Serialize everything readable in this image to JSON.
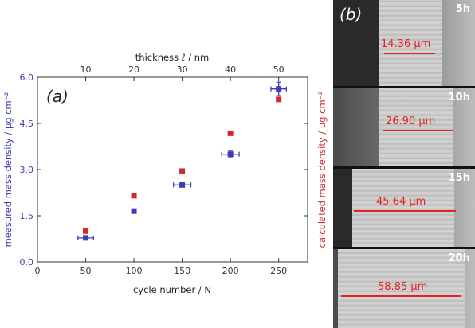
{
  "chart_data": {
    "type": "scatter",
    "panel_label": "(a)",
    "xlabel": "cycle number / N",
    "x2label": "thickness ℓ / nm",
    "ylabel": "measured mass density  /  μg cm⁻²",
    "y2label": "calculated mass density  /  μg cm⁻²",
    "xlim": [
      0,
      280
    ],
    "ylim": [
      0.0,
      6.0
    ],
    "x_ticks": [
      "0",
      "50",
      "100",
      "150",
      "200",
      "250"
    ],
    "x_tick_values": [
      0,
      50,
      100,
      150,
      200,
      250
    ],
    "x2_ticks": [
      "10",
      "20",
      "30",
      "40",
      "50"
    ],
    "x2_tick_values": [
      50,
      100,
      150,
      200,
      250
    ],
    "y_ticks": [
      "0.0",
      "1.5",
      "3.0",
      "4.5",
      "6.0"
    ],
    "y_tick_values": [
      0.0,
      1.5,
      3.0,
      4.5,
      6.0
    ],
    "grid": false,
    "series": [
      {
        "color": "#3b3bb8",
        "marker": "square",
        "axis": "left",
        "points": [
          {
            "x": 50,
            "y": 0.78,
            "xerr": 8,
            "yerr": 0
          },
          {
            "x": 100,
            "y": 1.65,
            "xerr": 0,
            "yerr": 0
          },
          {
            "x": 150,
            "y": 2.5,
            "xerr": 9,
            "yerr": 0
          },
          {
            "x": 200,
            "y": 3.5,
            "xerr": 9,
            "yerr": 0.12
          },
          {
            "x": 250,
            "y": 5.62,
            "xerr": 8,
            "yerr": 0.22
          }
        ]
      },
      {
        "color": "#d22a2a",
        "marker": "square",
        "axis": "right",
        "points": [
          {
            "x": 50,
            "y": 1.0
          },
          {
            "x": 100,
            "y": 2.15
          },
          {
            "x": 150,
            "y": 2.95
          },
          {
            "x": 200,
            "y": 4.18
          },
          {
            "x": 250,
            "y": 5.28
          }
        ]
      }
    ]
  },
  "micrographs": {
    "panel_label": "(b)",
    "panels": [
      {
        "time": "5h",
        "measurement": "14.36 μm"
      },
      {
        "time": "10h",
        "measurement": "26.90 μm"
      },
      {
        "time": "15h",
        "measurement": "45.64 μm"
      },
      {
        "time": "20h",
        "measurement": "58.85 μm"
      }
    ]
  }
}
